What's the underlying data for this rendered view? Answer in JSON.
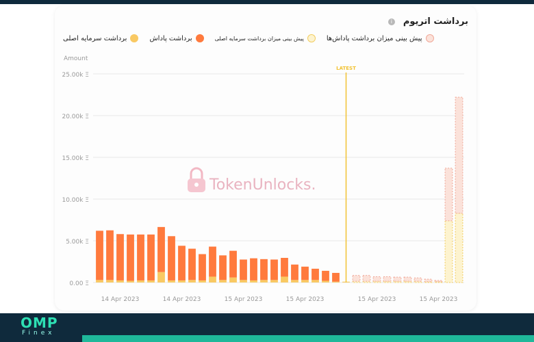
{
  "title": "برداشت اتریوم",
  "legend": {
    "principal": "برداشت سرمایه اصلی",
    "reward": "برداشت پاداش",
    "forecast_principal": "پیش بینی میزان برداشت سرمایه اصلی",
    "forecast_reward": "پیش بینی میزان برداشت پاداش‌ها"
  },
  "watermark": "TokenUnlocks.",
  "footer_logo": {
    "main": "OMP",
    "sub": "Finex"
  },
  "colors": {
    "reward": "#ff7a3d",
    "principal": "#f9c963",
    "forecast_reward_fill": "#fbe2da",
    "forecast_reward_stroke": "#f0a898",
    "forecast_principal_fill": "#fdf3cf",
    "forecast_principal_stroke": "#f2cd60",
    "latest": "#f2c232"
  },
  "chart_data": {
    "type": "bar",
    "stacked": true,
    "ylabel": "Amount",
    "ylim": [
      0,
      25000
    ],
    "yticks": [
      "0.00 Ξ",
      "5.00k Ξ",
      "10.00k Ξ",
      "15.00k Ξ",
      "20.00k Ξ",
      "25.00k Ξ"
    ],
    "ytick_values": [
      0,
      5000,
      10000,
      15000,
      20000,
      25000
    ],
    "xtick_labels": [
      "14 Apr 2023",
      "14 Apr 2023",
      "15 Apr 2023",
      "15 Apr 2023",
      "15 Apr 2023",
      "15 Apr 2023"
    ],
    "xtick_positions": [
      2.5,
      8.5,
      14.5,
      20.5,
      27.5,
      33.5
    ],
    "latest_label": "LATEST",
    "latest_index": 24.5,
    "grid": true,
    "series": [
      {
        "name": "برداشت پاداش",
        "kind": "actual",
        "values": [
          5900,
          5950,
          5550,
          5550,
          5500,
          5500,
          5400,
          5300,
          4150,
          3750,
          3150,
          3600,
          2950,
          3200,
          2450,
          2650,
          2500,
          2450,
          2250,
          1850,
          1600,
          1350,
          1200,
          1050,
          0
        ]
      },
      {
        "name": "برداشت سرمایه اصلی",
        "kind": "actual",
        "values": [
          300,
          300,
          250,
          200,
          250,
          250,
          1250,
          250,
          250,
          300,
          250,
          700,
          300,
          600,
          300,
          250,
          300,
          300,
          700,
          300,
          300,
          300,
          200,
          100,
          100
        ]
      },
      {
        "name": "پیش بینی میزان برداشت پاداش‌ها",
        "kind": "forecast",
        "values": [
          0,
          0,
          0,
          0,
          0,
          0,
          0,
          0,
          0,
          0,
          0,
          0,
          0,
          0,
          0,
          0,
          0,
          0,
          0,
          0,
          0,
          0,
          0,
          0,
          0,
          700,
          700,
          550,
          550,
          500,
          500,
          400,
          300,
          150,
          6300,
          13900
        ]
      },
      {
        "name": "پیش بینی میزان برداشت سرمایه اصلی",
        "kind": "forecast",
        "values": [
          0,
          0,
          0,
          0,
          0,
          0,
          0,
          0,
          0,
          0,
          0,
          0,
          0,
          0,
          0,
          0,
          0,
          0,
          0,
          0,
          0,
          0,
          0,
          0,
          0,
          150,
          150,
          150,
          150,
          150,
          150,
          150,
          100,
          100,
          7400,
          8300
        ]
      }
    ]
  }
}
